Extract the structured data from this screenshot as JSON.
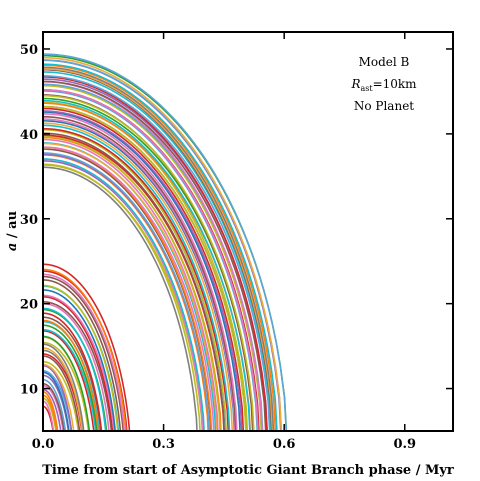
{
  "chart_data": {
    "type": "line",
    "title": "",
    "xlabel": "Time from start of Asymptotic Giant Branch phase / Myr",
    "ylabel_italic": "a",
    "ylabel_unit": " / au",
    "xlim": [
      0.0,
      1.02
    ],
    "ylim": [
      5.0,
      52.0
    ],
    "xticks": [
      0.0,
      0.3,
      0.6,
      0.9
    ],
    "xtick_labels": [
      "0.0",
      "0.3",
      "0.6",
      "0.9"
    ],
    "yticks": [
      10,
      20,
      30,
      40,
      50
    ],
    "ytick_labels": [
      "10",
      "20",
      "30",
      "40",
      "50"
    ],
    "grid": false,
    "legend": "none",
    "annotation": {
      "line1": "Model B",
      "line2_sym": "R",
      "line2_sub": "ast",
      "line2_rest": "=10km",
      "line3": "No Planet"
    },
    "series_colors": [
      "#1f77b4",
      "#ff7f0e",
      "#2ca02c",
      "#d62728",
      "#9467bd",
      "#8c564b",
      "#e377c2",
      "#7f7f7f",
      "#bcbd22",
      "#17becf",
      "#f2a93b",
      "#5da5da"
    ],
    "outer_belt": {
      "description_free": true,
      "a0_range": [
        36.0,
        49.5
      ],
      "t_end_range": [
        0.39,
        0.61
      ],
      "curves": 60
    },
    "inner_belt": {
      "description_free": true,
      "a0_range": [
        8.0,
        24.5
      ],
      "t_end_range": [
        0.03,
        0.22
      ],
      "curves": 45
    }
  }
}
